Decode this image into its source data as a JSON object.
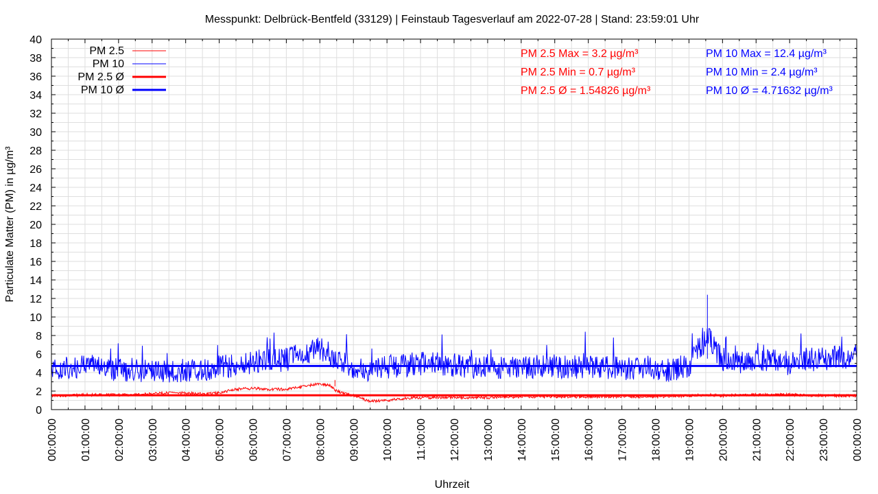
{
  "chart_data": {
    "type": "line",
    "title": "Messpunkt: Delbrück-Bentfeld (33129) | Feinstaub Tagesverlauf am 2022-07-28 | Stand: 23:59:01 Uhr",
    "xlabel": "Uhrzeit",
    "ylabel": "Particulate Matter (PM) in µg/m³",
    "ylim": [
      0,
      40
    ],
    "yticks": [
      0,
      2,
      4,
      6,
      8,
      10,
      12,
      14,
      16,
      18,
      20,
      22,
      24,
      26,
      28,
      30,
      32,
      34,
      36,
      38,
      40
    ],
    "xlim_hours": [
      0,
      24
    ],
    "xtick_labels": [
      "00:00:00",
      "01:00:00",
      "02:00:00",
      "03:00:00",
      "04:00:00",
      "05:00:00",
      "06:00:00",
      "07:00:00",
      "08:00:00",
      "09:00:00",
      "10:00:00",
      "11:00:00",
      "12:00:00",
      "13:00:00",
      "14:00:00",
      "15:00:00",
      "16:00:00",
      "17:00:00",
      "18:00:00",
      "19:00:00",
      "20:00:00",
      "21:00:00",
      "22:00:00",
      "23:00:00",
      "00:00:00"
    ],
    "grid": true,
    "legend_position": "top-left",
    "legend": [
      "PM 2.5",
      "PM 10",
      "PM 2.5 Ø",
      "PM 10 Ø"
    ],
    "series": [
      {
        "name": "PM 2.5",
        "color": "#ff0000",
        "x_hours": [
          0,
          0.5,
          1,
          1.5,
          2,
          2.5,
          3,
          3.5,
          4,
          4.5,
          5,
          5.5,
          6,
          6.5,
          7,
          7.5,
          8,
          8.3,
          8.5,
          8.7,
          9,
          9.5,
          10,
          10.5,
          11,
          12,
          13,
          14,
          15,
          16,
          17,
          18,
          19,
          19.5,
          20,
          20.5,
          21,
          22,
          23,
          24
        ],
        "values": [
          1.5,
          1.5,
          1.6,
          1.6,
          1.6,
          1.6,
          1.7,
          1.8,
          1.8,
          1.7,
          1.8,
          2.2,
          2.3,
          2.2,
          2.2,
          2.5,
          2.8,
          2.6,
          2.0,
          1.8,
          1.5,
          0.9,
          1.0,
          1.2,
          1.3,
          1.3,
          1.3,
          1.4,
          1.4,
          1.4,
          1.4,
          1.4,
          1.5,
          1.6,
          1.5,
          1.6,
          1.6,
          1.6,
          1.5,
          1.5
        ],
        "max": 3.2,
        "min": 0.7,
        "mean": 1.54826
      },
      {
        "name": "PM 10",
        "color": "#0000ff",
        "x_hours": [
          0,
          0.5,
          1,
          1.5,
          2,
          2.5,
          3,
          3.5,
          4,
          4.5,
          5,
          5.5,
          6,
          6.5,
          7,
          7.5,
          8,
          8.5,
          9,
          9.5,
          10,
          10.5,
          11,
          11.5,
          12,
          12.5,
          13,
          13.5,
          14,
          14.5,
          15,
          15.5,
          16,
          16.5,
          17,
          17.5,
          18,
          18.5,
          19,
          19.3,
          19.6,
          19.8,
          20,
          20.5,
          21,
          21.5,
          22,
          22.5,
          23,
          23.5,
          24
        ],
        "values": [
          4.0,
          4.5,
          4.8,
          4.5,
          4.3,
          4.3,
          4.2,
          4.1,
          4.3,
          4.2,
          4.6,
          4.8,
          5.2,
          5.3,
          5.4,
          6.0,
          6.6,
          5.6,
          4.6,
          4.2,
          4.6,
          4.8,
          5.0,
          4.9,
          4.8,
          4.6,
          4.5,
          4.5,
          4.6,
          4.6,
          4.7,
          4.6,
          4.6,
          4.6,
          4.5,
          4.4,
          4.3,
          4.3,
          4.8,
          6.6,
          7.8,
          6.4,
          5.4,
          5.0,
          5.6,
          5.2,
          5.0,
          5.4,
          5.5,
          5.6,
          5.8
        ],
        "max": 12.4,
        "min": 2.4,
        "mean": 4.71632
      }
    ],
    "annotations": {
      "pm25": {
        "color": "#ff0000",
        "lines": [
          "PM 2.5 Max = 3.2 µg/m³",
          "PM 2.5 Min = 0.7 µg/m³",
          "PM 2.5 Ø = 1.54826 µg/m³"
        ]
      },
      "pm10": {
        "color": "#0000ff",
        "lines": [
          "PM 10 Max = 12.4 µg/m³",
          "PM 10 Min = 2.4 µg/m³",
          "PM 10 Ø = 4.71632 µg/m³"
        ]
      }
    }
  }
}
